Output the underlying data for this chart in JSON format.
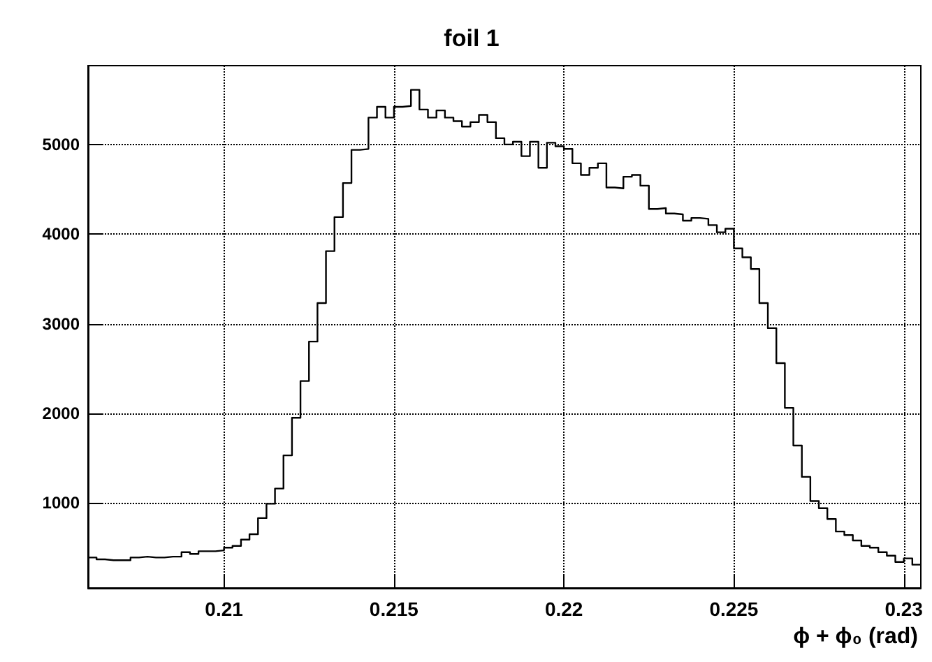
{
  "chart_data": {
    "type": "histogram",
    "title": "foil 1",
    "xlabel": "ϕ + ϕ₀ (rad)",
    "bins": [
      0.206,
      0.20625,
      0.2065,
      0.20675,
      0.207,
      0.20725,
      0.2075,
      0.20775,
      0.208,
      0.20825,
      0.2085,
      0.20875,
      0.209,
      0.20925,
      0.2095,
      0.20975,
      0.21,
      0.21025,
      0.2105,
      0.21075,
      0.211,
      0.21125,
      0.2115,
      0.21175,
      0.212,
      0.21225,
      0.2125,
      0.21275,
      0.213,
      0.21325,
      0.2135,
      0.21375,
      0.214,
      0.21425,
      0.2145,
      0.21475,
      0.215,
      0.21525,
      0.2155,
      0.21575,
      0.216,
      0.21625,
      0.2165,
      0.21675,
      0.217,
      0.21725,
      0.2175,
      0.21775,
      0.218,
      0.21825,
      0.2185,
      0.21875,
      0.219,
      0.21925,
      0.2195,
      0.21975,
      0.22,
      0.22025,
      0.2205,
      0.22075,
      0.221,
      0.22125,
      0.2215,
      0.22175,
      0.222,
      0.22225,
      0.2225,
      0.22275,
      0.223,
      0.22325,
      0.2235,
      0.22375,
      0.224,
      0.22425,
      0.2245,
      0.22475,
      0.225,
      0.22525,
      0.2255,
      0.22575,
      0.226,
      0.22625,
      0.2265,
      0.22675,
      0.227,
      0.22725,
      0.2275,
      0.22775,
      0.228,
      0.22825,
      0.2285,
      0.22875,
      0.229,
      0.22925,
      0.2295,
      0.22975,
      0.23,
      0.23025,
      0.2305
    ],
    "values": [
      390,
      370,
      360,
      360,
      360,
      390,
      400,
      390,
      390,
      400,
      400,
      450,
      430,
      460,
      460,
      470,
      500,
      520,
      590,
      650,
      830,
      990,
      1160,
      1530,
      1950,
      2360,
      2800,
      3230,
      3810,
      4190,
      4570,
      4940,
      4950,
      5300,
      5420,
      5300,
      5420,
      5430,
      5610,
      5390,
      5300,
      5380,
      5300,
      5260,
      5200,
      5250,
      5330,
      5250,
      5070,
      5000,
      5030,
      4870,
      5030,
      4740,
      5020,
      4980,
      4950,
      4790,
      4660,
      4740,
      4790,
      4520,
      4510,
      4640,
      4660,
      4540,
      4280,
      4290,
      4230,
      4220,
      4150,
      4180,
      4170,
      4100,
      4020,
      4060,
      3840,
      3740,
      3610,
      3230,
      2950,
      2560,
      2060,
      1640,
      1290,
      1020,
      940,
      820,
      680,
      640,
      580,
      520,
      500,
      450,
      410,
      340,
      380,
      310
    ],
    "color": "#000000",
    "xlim": [
      0.206,
      0.2305
    ],
    "ylim": [
      50,
      5880
    ],
    "xticks": [
      0.21,
      0.215,
      0.22,
      0.225,
      0.23
    ],
    "yticks": [
      1000,
      2000,
      3000,
      4000,
      5000
    ],
    "grid": true
  }
}
